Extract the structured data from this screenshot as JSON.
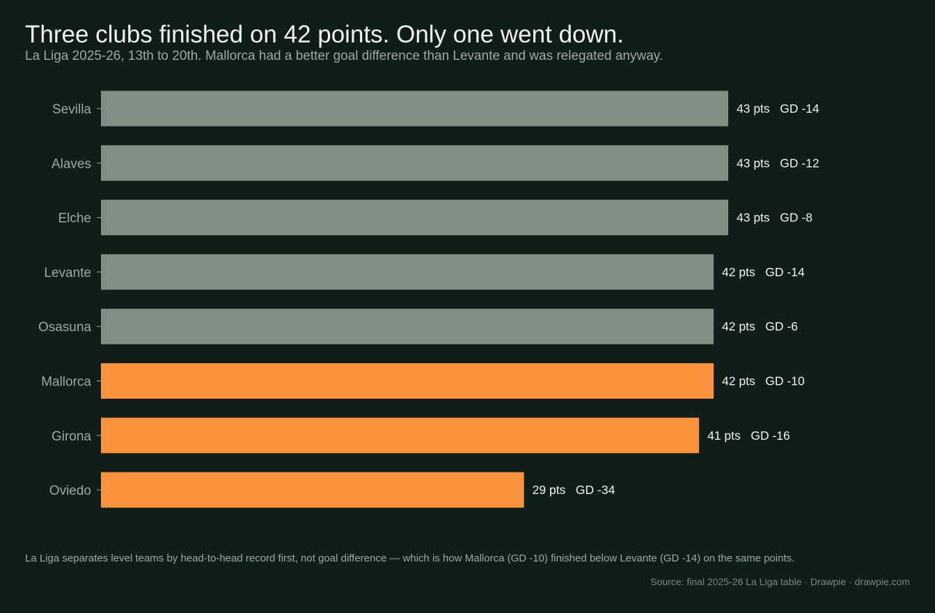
{
  "title": "Three clubs finished on 42 points. Only one went down.",
  "subtitle": "La Liga 2025-26, 13th to 20th. Mallorca had a better goal difference than Levante and was relegated anyway.",
  "footnote": "La Liga separates level teams by head-to-head record first, not goal difference — which is how Mallorca (GD -10) finished below Levante (GD -14) on the same points.",
  "source": "Source: final 2025-26 La Liga table  ·  Drawpie · drawpie.com",
  "colors": {
    "background": "#0f1e18",
    "safe": "#7f8f84",
    "relegated": "#fb923c",
    "label_text": "#9fa8a2",
    "value_text": "#f2f2ee"
  },
  "chart_data": {
    "type": "bar",
    "orientation": "horizontal",
    "categories": [
      "Sevilla",
      "Alaves",
      "Elche",
      "Levante",
      "Osasuna",
      "Mallorca",
      "Girona",
      "Oviedo"
    ],
    "series": [
      {
        "values": [
          43,
          43,
          43,
          42,
          42,
          42,
          41,
          29
        ]
      }
    ],
    "goal_difference": [
      -14,
      -12,
      -8,
      -14,
      -6,
      -10,
      -16,
      -34
    ],
    "data_labels": [
      "43 pts   GD -14",
      "43 pts   GD -12",
      "43 pts   GD -8",
      "42 pts   GD -14",
      "42 pts   GD -6",
      "42 pts   GD -10",
      "41 pts   GD -16",
      "29 pts   GD -34"
    ],
    "relegated": [
      false,
      false,
      false,
      false,
      false,
      true,
      true,
      true
    ],
    "xlim": [
      0,
      43
    ],
    "xlabel": "",
    "ylabel": "",
    "grid": false,
    "legend": "none"
  }
}
